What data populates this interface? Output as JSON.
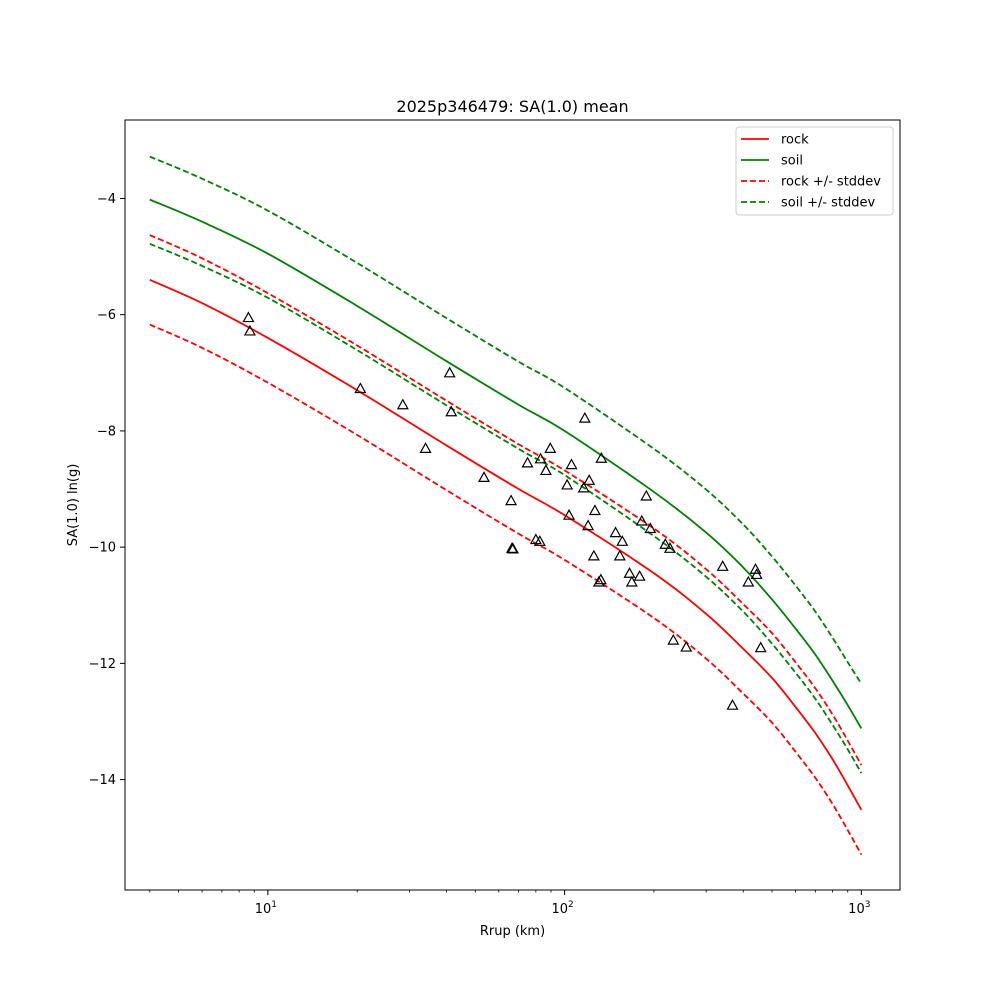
{
  "chart_data": {
    "type": "line",
    "title": "2025p346479: SA(1.0) mean",
    "xlabel": "Rrup (km)",
    "ylabel": "SA(1.0) ln(g)",
    "xscale": "log",
    "xlim": [
      3.3,
      1350
    ],
    "ylim": [
      -15.9,
      -2.65
    ],
    "x_ticks": [
      {
        "value": 10,
        "label": "10",
        "exp": "1"
      },
      {
        "value": 100,
        "label": "10",
        "exp": "2"
      },
      {
        "value": 1000,
        "label": "10",
        "exp": "3"
      }
    ],
    "y_ticks": [
      -4,
      -6,
      -8,
      -10,
      -12,
      -14
    ],
    "grid": false,
    "legend_position": "top-right",
    "series": [
      {
        "name": "rock",
        "color": "#ff0000",
        "style": "solid",
        "group": "main",
        "x": [
          4,
          6,
          10,
          20,
          40,
          70,
          100,
          200,
          300,
          400,
          500,
          600,
          700,
          800,
          900,
          1000
        ],
        "y": [
          -5.4,
          -5.8,
          -6.4,
          -7.3,
          -8.25,
          -9.0,
          -9.45,
          -10.45,
          -11.15,
          -11.75,
          -12.25,
          -12.75,
          -13.2,
          -13.65,
          -14.1,
          -14.52
        ]
      },
      {
        "name": "soil",
        "color": "#008000",
        "style": "solid",
        "group": "main",
        "x": [
          4,
          6,
          10,
          20,
          40,
          70,
          100,
          200,
          300,
          400,
          500,
          600,
          700,
          800,
          900,
          1000
        ],
        "y": [
          -4.02,
          -4.4,
          -4.95,
          -5.85,
          -6.8,
          -7.55,
          -8.0,
          -9.05,
          -9.75,
          -10.35,
          -10.9,
          -11.4,
          -11.85,
          -12.3,
          -12.72,
          -13.12
        ]
      },
      {
        "name": "rock +/- stddev",
        "color": "#ff0000",
        "style": "dashed",
        "group": "upper",
        "x": [
          4,
          6,
          10,
          20,
          40,
          70,
          100,
          200,
          300,
          400,
          500,
          600,
          700,
          800,
          900,
          1000
        ],
        "y": [
          -4.63,
          -5.03,
          -5.63,
          -6.53,
          -7.48,
          -8.23,
          -8.68,
          -9.68,
          -10.38,
          -10.98,
          -11.48,
          -11.98,
          -12.43,
          -12.88,
          -13.33,
          -13.75
        ]
      },
      {
        "name": "",
        "color": "#ff0000",
        "style": "dashed",
        "group": "lower",
        "x": [
          4,
          6,
          10,
          20,
          40,
          70,
          100,
          200,
          300,
          400,
          500,
          600,
          700,
          800,
          900,
          1000
        ],
        "y": [
          -6.17,
          -6.57,
          -7.17,
          -8.07,
          -9.02,
          -9.77,
          -10.22,
          -11.22,
          -11.92,
          -12.52,
          -13.02,
          -13.52,
          -13.97,
          -14.42,
          -14.87,
          -15.29
        ]
      },
      {
        "name": "soil +/- stddev",
        "color": "#008000",
        "style": "dashed",
        "group": "upper",
        "x": [
          4,
          6,
          10,
          20,
          40,
          70,
          100,
          200,
          300,
          400,
          500,
          600,
          700,
          800,
          900,
          1000
        ],
        "y": [
          -3.28,
          -3.66,
          -4.21,
          -5.11,
          -6.06,
          -6.81,
          -7.26,
          -8.31,
          -9.01,
          -9.61,
          -10.16,
          -10.66,
          -11.11,
          -11.56,
          -11.98,
          -12.35
        ]
      },
      {
        "name": "",
        "color": "#008000",
        "style": "dashed",
        "group": "lower",
        "x": [
          4,
          6,
          10,
          20,
          40,
          70,
          100,
          200,
          300,
          400,
          500,
          600,
          700,
          800,
          900,
          1000
        ],
        "y": [
          -4.78,
          -5.16,
          -5.71,
          -6.61,
          -7.56,
          -8.31,
          -8.76,
          -9.81,
          -10.51,
          -11.11,
          -11.66,
          -12.16,
          -12.61,
          -13.06,
          -13.48,
          -13.89
        ]
      }
    ],
    "observations": {
      "marker": "triangle",
      "points": [
        [
          8.6,
          -6.05
        ],
        [
          8.7,
          -6.28
        ],
        [
          20.5,
          -7.27
        ],
        [
          28.5,
          -7.55
        ],
        [
          34,
          -8.3
        ],
        [
          41,
          -7.0
        ],
        [
          41.5,
          -7.67
        ],
        [
          53.5,
          -8.8
        ],
        [
          66,
          -9.2
        ],
        [
          66.5,
          -10.02
        ],
        [
          67,
          -10.03
        ],
        [
          75,
          -8.55
        ],
        [
          80,
          -9.87
        ],
        [
          82.5,
          -9.9
        ],
        [
          83,
          -8.48
        ],
        [
          86.5,
          -8.68
        ],
        [
          89.5,
          -8.3
        ],
        [
          102,
          -8.93
        ],
        [
          103.5,
          -9.45
        ],
        [
          105.5,
          -8.58
        ],
        [
          116,
          -8.98
        ],
        [
          117,
          -7.78
        ],
        [
          120,
          -9.63
        ],
        [
          121,
          -8.85
        ],
        [
          125.5,
          -10.15
        ],
        [
          126.5,
          -9.37
        ],
        [
          130.5,
          -10.6
        ],
        [
          132.5,
          -10.56
        ],
        [
          133,
          -8.47
        ],
        [
          148.5,
          -9.75
        ],
        [
          153.5,
          -10.15
        ],
        [
          156.5,
          -9.9
        ],
        [
          165.5,
          -10.45
        ],
        [
          168.5,
          -10.6
        ],
        [
          179,
          -10.5
        ],
        [
          182,
          -9.55
        ],
        [
          188.5,
          -9.12
        ],
        [
          194.5,
          -9.68
        ],
        [
          218.5,
          -9.95
        ],
        [
          226.5,
          -10.02
        ],
        [
          232.5,
          -11.6
        ],
        [
          257,
          -11.72
        ],
        [
          341,
          -10.33
        ],
        [
          368,
          -12.72
        ],
        [
          416,
          -10.6
        ],
        [
          440,
          -10.38
        ],
        [
          444,
          -10.47
        ],
        [
          458,
          -11.73
        ]
      ]
    }
  }
}
